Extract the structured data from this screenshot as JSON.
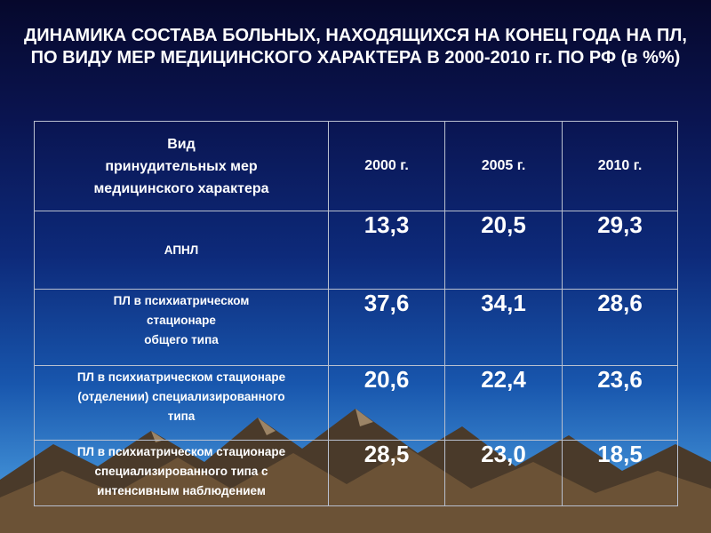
{
  "slide": {
    "title": "ДИНАМИКА СОСТАВА БОЛЬНЫХ, НАХОДЯЩИХСЯ НА КОНЕЦ ГОДА НА ПЛ, ПО ВИДУ МЕР МЕДИЦИНСКОГО ХАРАКТЕРА В 2000-2010 гг. ПО РФ  (в %%)"
  },
  "table": {
    "header": {
      "label_lines": [
        "Вид",
        "принудительных мер",
        "медицинского характера"
      ],
      "years": [
        "2000 г.",
        "2005 г.",
        "2010 г."
      ]
    },
    "rows": [
      {
        "label_lines": [
          "АПНЛ"
        ],
        "values": [
          "13,3",
          "20,5",
          "29,3"
        ]
      },
      {
        "label_lines": [
          "ПЛ в психиатрическом",
          "стационаре",
          "общего типа"
        ],
        "values": [
          "37,6",
          "34,1",
          "28,6"
        ]
      },
      {
        "label_lines": [
          "ПЛ в психиатрическом стационаре",
          "(отделении) специализированного",
          "типа"
        ],
        "values": [
          "20,6",
          "22,4",
          "23,6"
        ]
      },
      {
        "label_lines": [
          "ПЛ в психиатрическом стационаре",
          "специализированного типа с",
          "интенсивным наблюдением"
        ],
        "values": [
          "28,5",
          "23,0",
          "18,5"
        ]
      }
    ]
  }
}
